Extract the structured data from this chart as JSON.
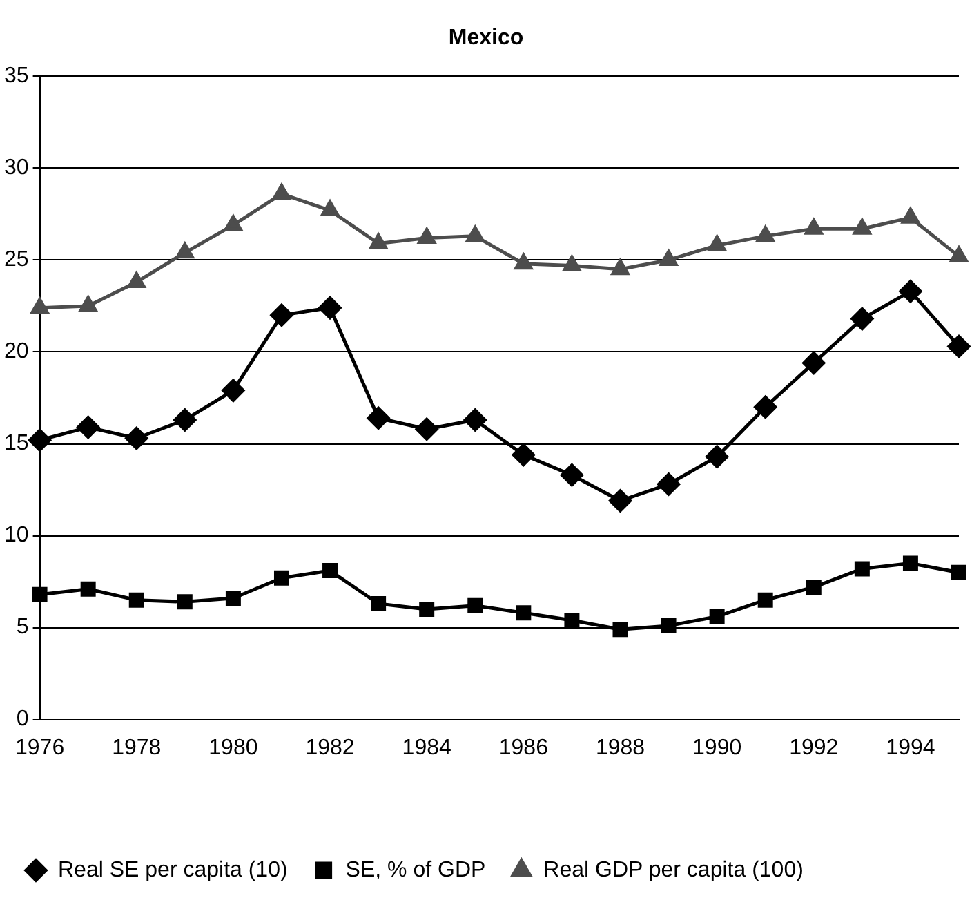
{
  "chart_data": {
    "type": "line",
    "title": "Mexico",
    "categories": [
      "1976",
      null,
      "1978",
      null,
      "1980",
      null,
      "1982",
      null,
      "1984",
      null,
      "1986",
      null,
      "1988",
      null,
      "1990",
      null,
      "1992",
      null,
      "1994",
      null
    ],
    "series": [
      {
        "name": "Real SE per capita (10)",
        "color": "#000000",
        "marker": "diamond",
        "values": [
          15.2,
          15.9,
          15.3,
          16.3,
          17.9,
          22.0,
          22.4,
          16.4,
          15.8,
          16.3,
          14.4,
          13.3,
          11.9,
          12.8,
          14.3,
          17.0,
          19.4,
          21.8,
          23.3,
          20.3
        ]
      },
      {
        "name": "SE, % of GDP",
        "color": "#000000",
        "marker": "square",
        "values": [
          6.8,
          7.1,
          6.5,
          6.4,
          6.6,
          7.7,
          8.1,
          6.3,
          6.0,
          6.2,
          5.8,
          5.4,
          4.9,
          5.1,
          5.6,
          6.5,
          7.2,
          8.2,
          8.5,
          8.0
        ]
      },
      {
        "name": "Real GDP per capita (100)",
        "color": "#4d4d4d",
        "marker": "triangle",
        "values": [
          22.4,
          22.5,
          23.8,
          25.4,
          26.9,
          28.6,
          27.7,
          25.9,
          26.2,
          26.3,
          24.8,
          24.7,
          24.5,
          25.0,
          25.8,
          26.3,
          26.7,
          26.7,
          27.3,
          25.2
        ]
      }
    ],
    "ylim": [
      0,
      35
    ],
    "yticks": [
      0,
      5,
      10,
      15,
      20,
      25,
      30,
      35
    ],
    "grid": "y",
    "legend": "bottom",
    "line_style": "solid"
  }
}
